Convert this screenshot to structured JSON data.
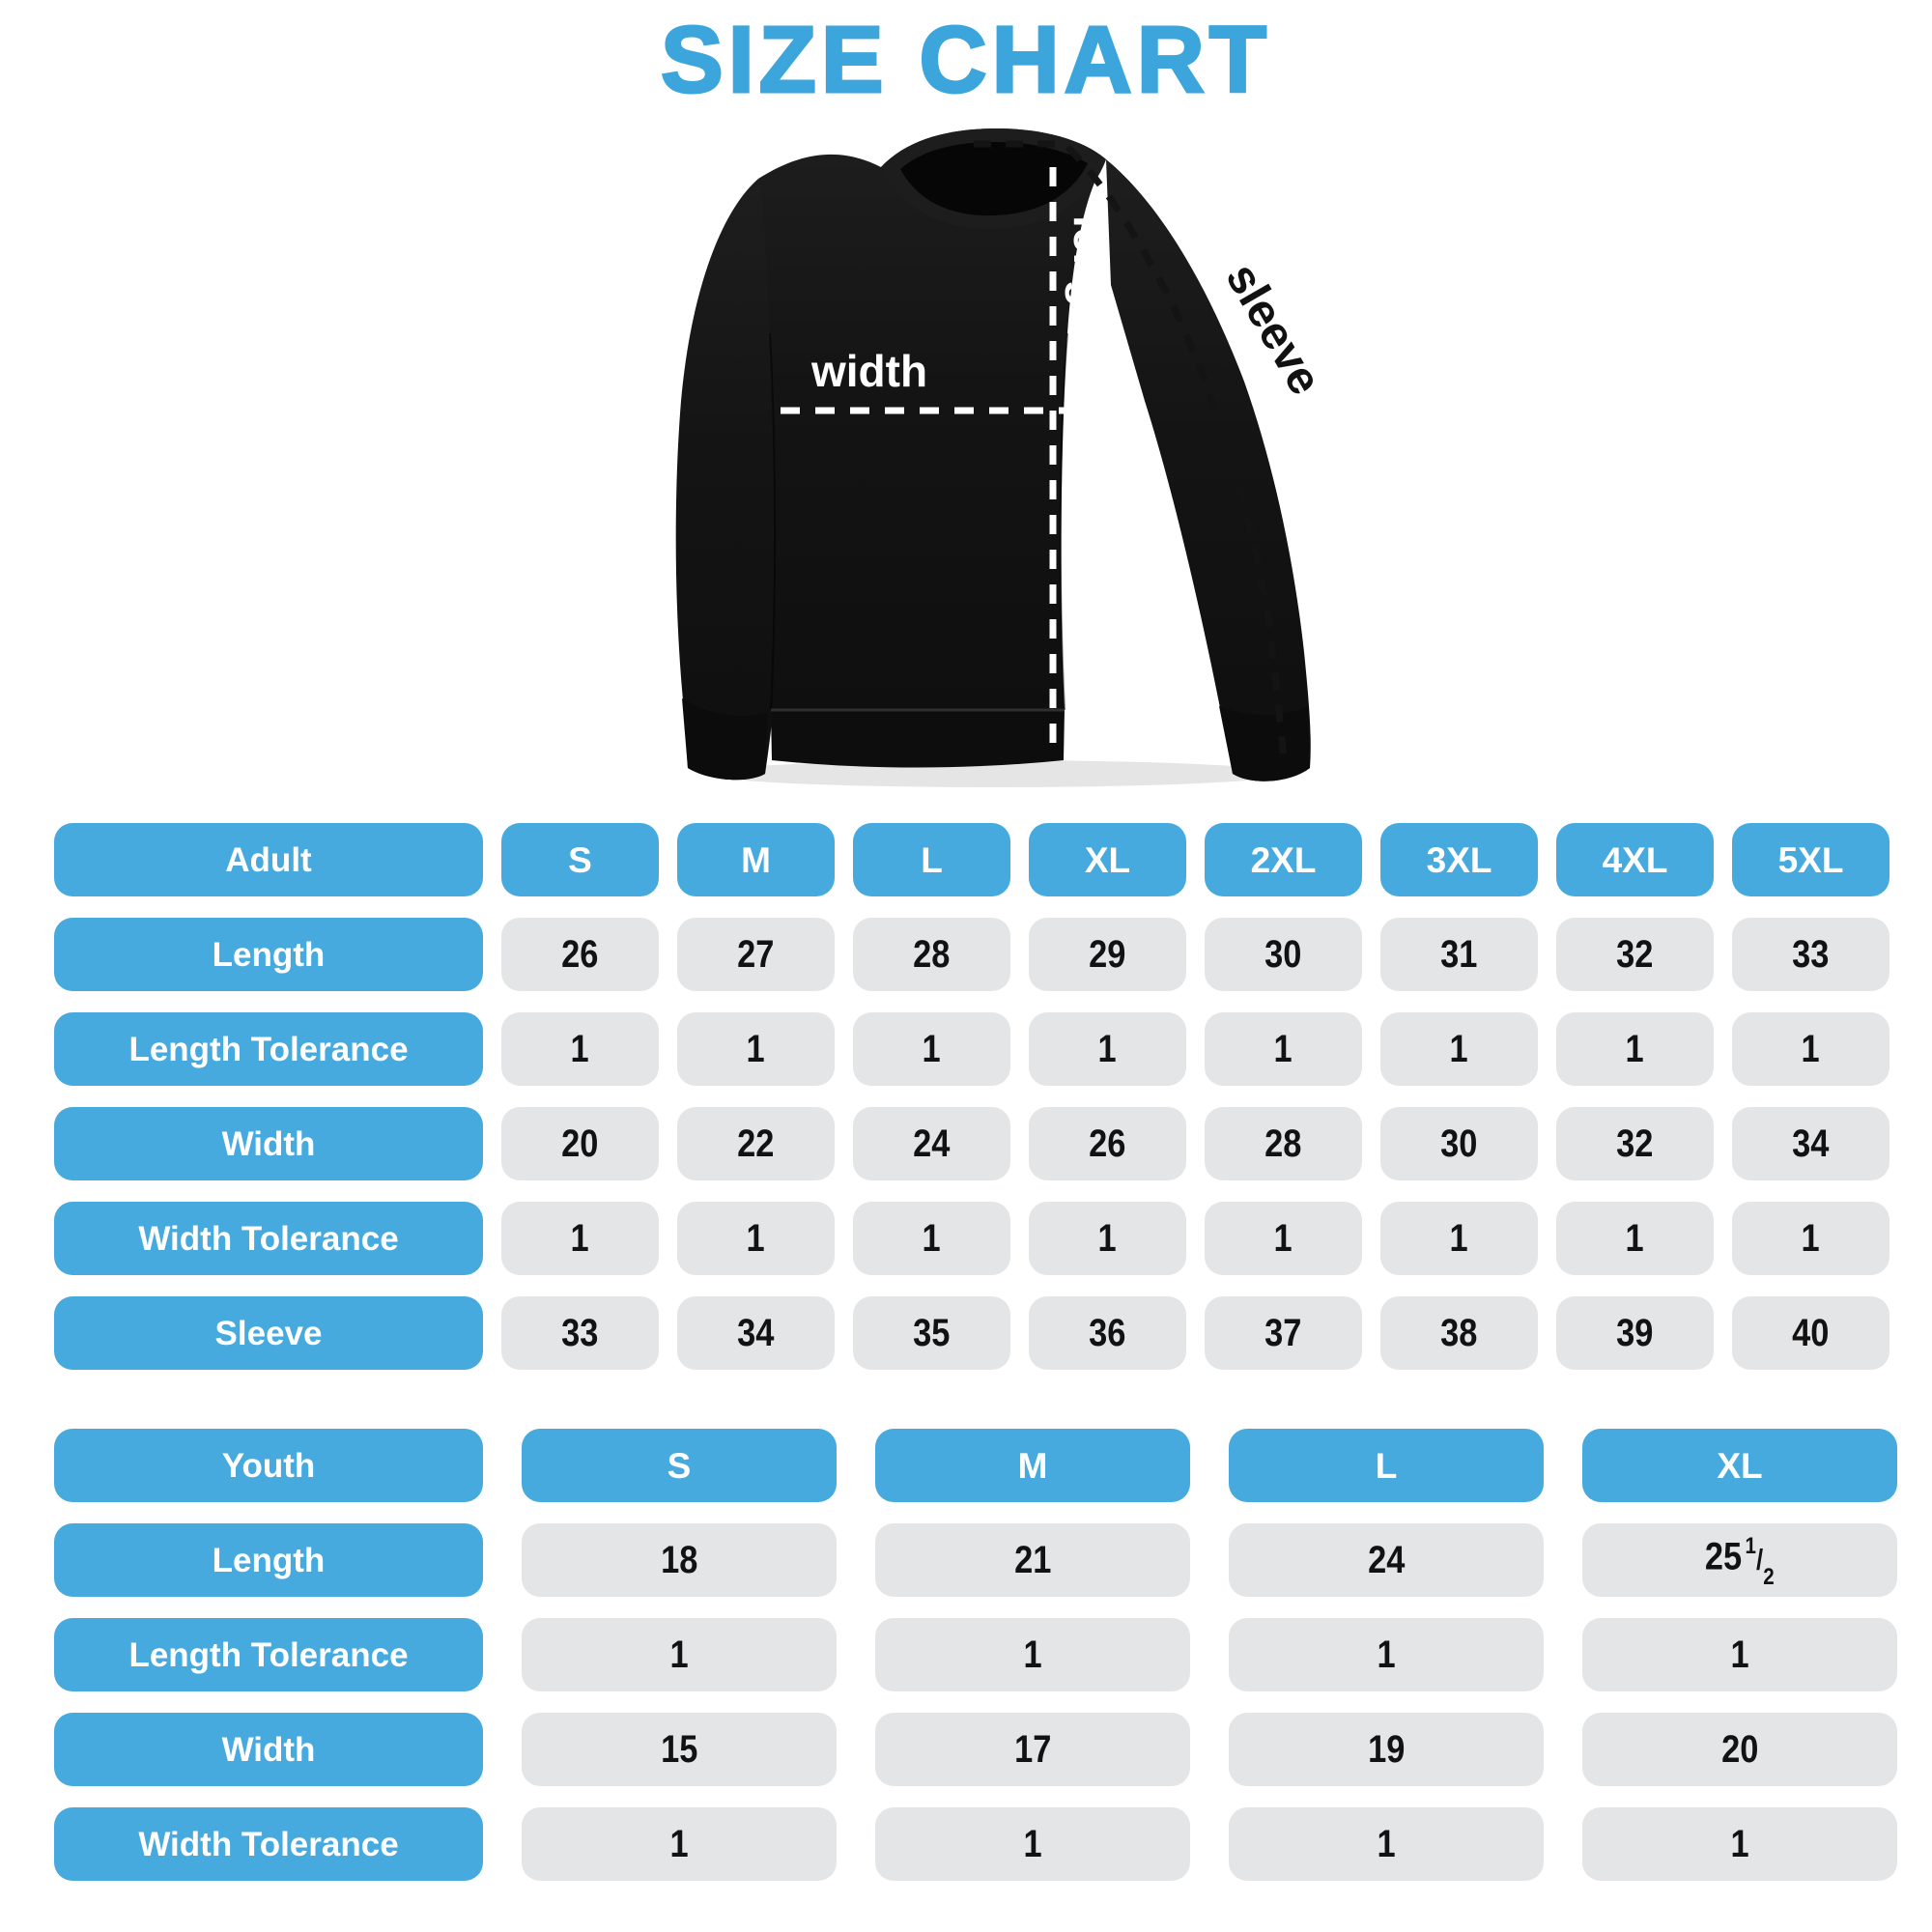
{
  "title": "SIZE CHART",
  "colors": {
    "accent": "#47AADF",
    "title": "#3BA5DC",
    "cell": "#E4E5E7",
    "number": "#121212"
  },
  "diagram": {
    "garment": "crewneck-sweatshirt",
    "labels": {
      "length": "length",
      "width": "width",
      "sleeve": "sleeve"
    }
  },
  "chart_data": [
    {
      "type": "table",
      "name": "adult",
      "header_label": "Adult",
      "columns": [
        "S",
        "M",
        "L",
        "XL",
        "2XL",
        "3XL",
        "4XL",
        "5XL"
      ],
      "rows": [
        {
          "label": "Length",
          "values": [
            "26",
            "27",
            "28",
            "29",
            "30",
            "31",
            "32",
            "33"
          ]
        },
        {
          "label": "Length Tolerance",
          "values": [
            "1",
            "1",
            "1",
            "1",
            "1",
            "1",
            "1",
            "1"
          ]
        },
        {
          "label": "Width",
          "values": [
            "20",
            "22",
            "24",
            "26",
            "28",
            "30",
            "32",
            "34"
          ]
        },
        {
          "label": "Width Tolerance",
          "values": [
            "1",
            "1",
            "1",
            "1",
            "1",
            "1",
            "1",
            "1"
          ]
        },
        {
          "label": "Sleeve",
          "values": [
            "33",
            "34",
            "35",
            "36",
            "37",
            "38",
            "39",
            "40"
          ]
        }
      ]
    },
    {
      "type": "table",
      "name": "youth",
      "header_label": "Youth",
      "columns": [
        "S",
        "M",
        "L",
        "XL"
      ],
      "rows": [
        {
          "label": "Length",
          "values": [
            "18",
            "21",
            "24",
            "25 1/2"
          ]
        },
        {
          "label": "Length Tolerance",
          "values": [
            "1",
            "1",
            "1",
            "1"
          ]
        },
        {
          "label": "Width",
          "values": [
            "15",
            "17",
            "19",
            "20"
          ]
        },
        {
          "label": "Width Tolerance",
          "values": [
            "1",
            "1",
            "1",
            "1"
          ]
        }
      ]
    }
  ]
}
